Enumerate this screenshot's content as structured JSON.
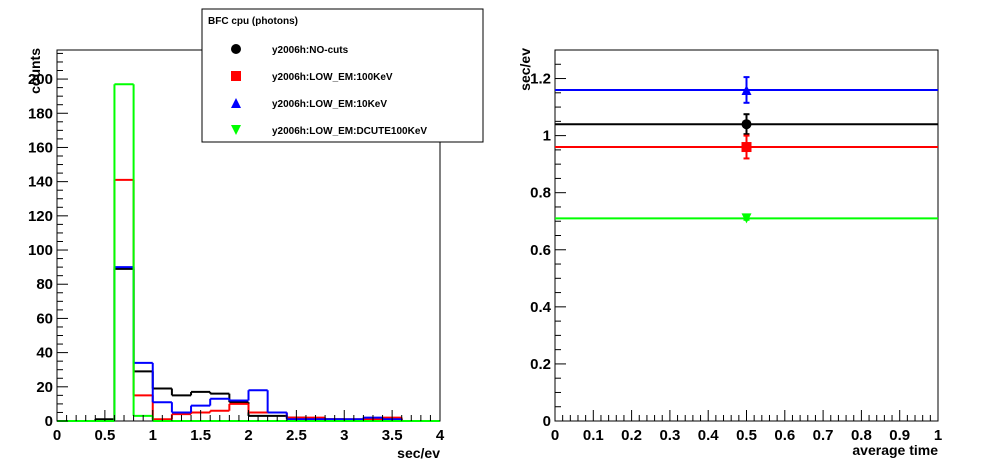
{
  "chart_data": [
    {
      "type": "histogram",
      "xlabel": "sec/ev",
      "ylabel": "counts",
      "xlim": [
        0,
        4
      ],
      "ylim": [
        0,
        217
      ],
      "x_ticks": [
        "0",
        "0.5",
        "1",
        "1.5",
        "2",
        "2.5",
        "3",
        "3.5",
        "4"
      ],
      "y_ticks": [
        "0",
        "20",
        "40",
        "60",
        "80",
        "100",
        "120",
        "140",
        "160",
        "180",
        "200"
      ],
      "bin_edges": [
        0,
        0.2,
        0.4,
        0.6,
        0.8,
        1.0,
        1.2,
        1.4,
        1.6,
        1.8,
        2.0,
        2.2,
        2.4,
        2.6,
        2.8,
        3.0,
        3.2,
        3.4,
        3.6,
        3.8,
        4.0
      ],
      "grid": false,
      "series": [
        {
          "name": "y2006h:NO-cuts",
          "color": "#000000",
          "values": [
            0,
            0,
            1,
            89,
            29,
            19,
            15,
            17,
            16,
            11,
            3,
            3,
            2,
            1,
            1,
            0,
            1,
            1,
            0,
            0
          ]
        },
        {
          "name": "y2006h:LOW_EM:100KeV",
          "color": "#ff0000",
          "values": [
            0,
            0,
            0,
            141,
            15,
            1,
            4,
            5,
            6,
            10,
            5,
            5,
            2,
            2,
            1,
            1,
            1,
            2,
            0,
            0
          ]
        },
        {
          "name": "y2006h:LOW_EM:10KeV",
          "color": "#0000ff",
          "values": [
            0,
            0,
            0,
            90,
            34,
            11,
            5,
            9,
            13,
            12,
            18,
            5,
            1,
            1,
            1,
            1,
            2,
            1,
            0,
            0
          ]
        },
        {
          "name": "y2006h:LOW_EM:DCUTE100KeV",
          "color": "#00ff00",
          "values": [
            0,
            0,
            0,
            197,
            3,
            0,
            0,
            0,
            0,
            0,
            0,
            0,
            0,
            0,
            0,
            0,
            0,
            0,
            0,
            0
          ]
        }
      ]
    },
    {
      "type": "scatter",
      "xlabel": "average time",
      "ylabel": "sec/ev",
      "xlim": [
        0,
        1
      ],
      "ylim": [
        0,
        1.3
      ],
      "x_ticks": [
        "0",
        "0.1",
        "0.2",
        "0.3",
        "0.4",
        "0.5",
        "0.6",
        "0.7",
        "0.8",
        "0.9",
        "1"
      ],
      "y_ticks": [
        "0",
        "0.2",
        "0.4",
        "0.6",
        "0.8",
        "1",
        "1.2"
      ],
      "grid": false,
      "series": [
        {
          "name": "y2006h:NO-cuts",
          "color": "#000000",
          "marker": "circle",
          "x": 0.5,
          "y": 1.04,
          "yerr": 0.035,
          "hline": 1.04
        },
        {
          "name": "y2006h:LOW_EM:100KeV",
          "color": "#ff0000",
          "marker": "square",
          "x": 0.5,
          "y": 0.96,
          "yerr": 0.04,
          "hline": 0.96
        },
        {
          "name": "y2006h:LOW_EM:10KeV",
          "color": "#0000ff",
          "marker": "triangle-up",
          "x": 0.5,
          "y": 1.16,
          "yerr": 0.045,
          "hline": 1.16
        },
        {
          "name": "y2006h:LOW_EM:DCUTE100KeV",
          "color": "#00ff00",
          "marker": "triangle-down",
          "x": 0.5,
          "y": 0.71,
          "yerr": 0.005,
          "hline": 0.71
        }
      ]
    }
  ],
  "legend": {
    "title": "BFC cpu (photons)",
    "entries": [
      {
        "label": "y2006h:NO-cuts",
        "color": "#000000",
        "marker": "circle"
      },
      {
        "label": "y2006h:LOW_EM:100KeV",
        "color": "#ff0000",
        "marker": "square"
      },
      {
        "label": "y2006h:LOW_EM:10KeV",
        "color": "#0000ff",
        "marker": "triangle-up"
      },
      {
        "label": "y2006h:LOW_EM:DCUTE100KeV",
        "color": "#00ff00",
        "marker": "triangle-down"
      }
    ]
  }
}
